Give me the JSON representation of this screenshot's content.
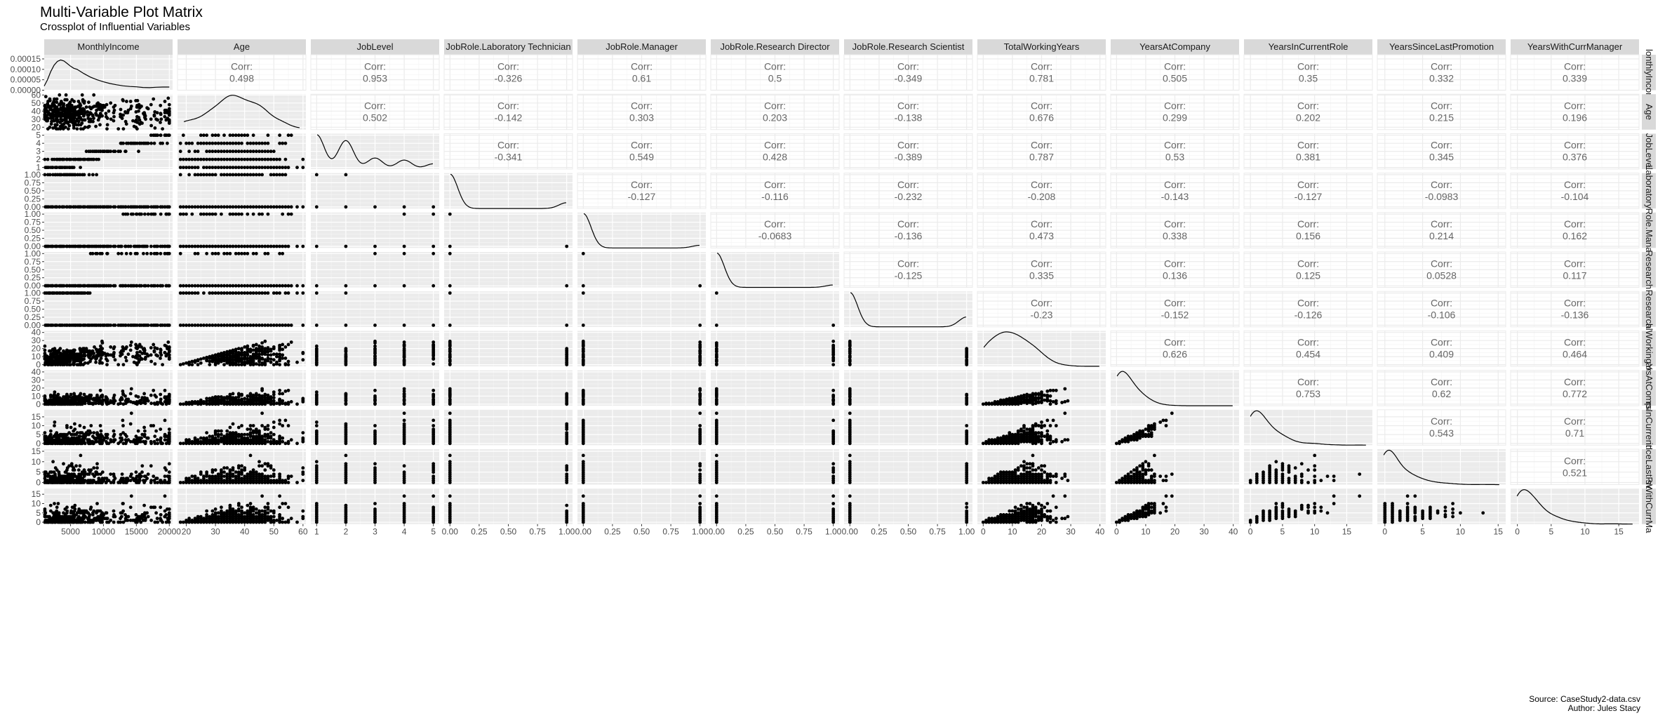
{
  "header": {
    "title": "Multi-Variable Plot Matrix",
    "subtitle": "Crossplot of Influential Variables"
  },
  "footer": {
    "source": "Source: CaseStudy2-data.csv",
    "author": "Author: Jules Stacy"
  },
  "chart_data": {
    "type": "scatter",
    "matrix": true,
    "variables": [
      "MonthlyIncome",
      "Age",
      "JobLevel",
      "JobRole.Laboratory Technician",
      "JobRole.Manager",
      "JobRole.Research Director",
      "JobRole.Research Scientist",
      "TotalWorkingYears",
      "YearsAtCompany",
      "YearsInCurrentRole",
      "YearsSinceLastPromotion",
      "YearsWithCurrManager"
    ],
    "row_strip_labels": [
      "lonthlyIncor",
      "Age",
      "JobLevel",
      "Laboratory T",
      "Role.Mana",
      "Research",
      "Research",
      "alWorkingYe",
      "arsAtCompa",
      "rsInCurrentF",
      "inceLastPro",
      "sWithCurrMa"
    ],
    "corr_word": "Corr:",
    "correlations": [
      [
        "",
        "0.498",
        "0.953",
        "-0.326",
        "0.61",
        "0.5",
        "-0.349",
        "0.781",
        "0.505",
        "0.35",
        "0.332",
        "0.339"
      ],
      [
        "",
        "",
        "0.502",
        "-0.142",
        "0.303",
        "0.203",
        "-0.138",
        "0.676",
        "0.299",
        "0.202",
        "0.215",
        "0.196"
      ],
      [
        "",
        "",
        "",
        "-0.341",
        "0.549",
        "0.428",
        "-0.389",
        "0.787",
        "0.53",
        "0.381",
        "0.345",
        "0.376"
      ],
      [
        "",
        "",
        "",
        "",
        "-0.127",
        "-0.116",
        "-0.232",
        "-0.208",
        "-0.143",
        "-0.127",
        "-0.0983",
        "-0.104"
      ],
      [
        "",
        "",
        "",
        "",
        "",
        "-0.0683",
        "-0.136",
        "0.473",
        "0.338",
        "0.156",
        "0.214",
        "0.162"
      ],
      [
        "",
        "",
        "",
        "",
        "",
        "",
        "-0.125",
        "0.335",
        "0.136",
        "0.125",
        "0.0528",
        "0.117"
      ],
      [
        "",
        "",
        "",
        "",
        "",
        "",
        "",
        "-0.23",
        "-0.152",
        "-0.126",
        "-0.106",
        "-0.136"
      ],
      [
        "",
        "",
        "",
        "",
        "",
        "",
        "",
        "",
        "0.626",
        "0.454",
        "0.409",
        "0.464"
      ],
      [
        "",
        "",
        "",
        "",
        "",
        "",
        "",
        "",
        "",
        "0.753",
        "0.62",
        "0.772"
      ],
      [
        "",
        "",
        "",
        "",
        "",
        "",
        "",
        "",
        "",
        "",
        "0.543",
        "0.71"
      ],
      [
        "",
        "",
        "",
        "",
        "",
        "",
        "",
        "",
        "",
        "",
        "",
        "0.521"
      ],
      [
        "",
        "",
        "",
        "",
        "",
        "",
        "",
        "",
        "",
        "",
        "",
        ""
      ]
    ],
    "ranges": [
      [
        1000,
        20500
      ],
      [
        17,
        61
      ],
      [
        0.8,
        5.2
      ],
      [
        -0.05,
        1.05
      ],
      [
        -0.05,
        1.05
      ],
      [
        -0.05,
        1.05
      ],
      [
        -0.05,
        1.05
      ],
      [
        -2,
        42
      ],
      [
        -2,
        42
      ],
      [
        -1,
        19
      ],
      [
        -1,
        16
      ],
      [
        -1,
        18
      ]
    ],
    "x_ticks": [
      [
        "5000",
        "10000",
        "15000",
        "20000"
      ],
      [
        "20",
        "30",
        "40",
        "50",
        "60"
      ],
      [
        "1",
        "2",
        "3",
        "4",
        "5"
      ],
      [
        "0.00",
        "0.25",
        "0.50",
        "0.75",
        "1.00"
      ],
      [
        "0.00",
        "0.25",
        "0.50",
        "0.75",
        "1.00"
      ],
      [
        "0.00",
        "0.25",
        "0.50",
        "0.75",
        "1.00"
      ],
      [
        "0.00",
        "0.25",
        "0.50",
        "0.75",
        "1.00"
      ],
      [
        "0",
        "10",
        "20",
        "30",
        "40"
      ],
      [
        "0",
        "10",
        "20",
        "30",
        "40"
      ],
      [
        "0",
        "5",
        "10",
        "15"
      ],
      [
        "0",
        "5",
        "10",
        "15"
      ],
      [
        "0",
        "5",
        "10",
        "15"
      ]
    ],
    "y_ticks": [
      [
        "0.00000",
        "0.00005",
        "0.00010",
        "0.00015"
      ],
      [
        "20",
        "30",
        "40",
        "50",
        "60"
      ],
      [
        "1",
        "2",
        "3",
        "4",
        "5"
      ],
      [
        "0.00",
        "0.25",
        "0.50",
        "0.75",
        "1.00"
      ],
      [
        "0.00",
        "0.25",
        "0.50",
        "0.75",
        "1.00"
      ],
      [
        "0.00",
        "0.25",
        "0.50",
        "0.75",
        "1.00"
      ],
      [
        "0.00",
        "0.25",
        "0.50",
        "0.75",
        "1.00"
      ],
      [
        "0",
        "10",
        "20",
        "30",
        "40"
      ],
      [
        "0",
        "10",
        "20",
        "30",
        "40"
      ],
      [
        "0",
        "5",
        "10",
        "15"
      ],
      [
        "0",
        "5",
        "10",
        "15"
      ],
      [
        "0",
        "5",
        "10",
        "15"
      ]
    ],
    "density_row0": {
      "x": [
        1000,
        1500,
        2000,
        2500,
        3000,
        3500,
        4000,
        4500,
        5000,
        5500,
        6000,
        6500,
        7000,
        8000,
        9000,
        10000,
        11000,
        12000,
        13000,
        14000,
        15000,
        16000,
        17000,
        18000,
        19000,
        20000
      ],
      "y": [
        2e-05,
        5e-05,
        9e-05,
        0.00012,
        0.000138,
        0.000145,
        0.00014,
        0.000128,
        0.000115,
        0.000105,
        0.0001,
        9e-05,
        8e-05,
        6.3e-05,
        5e-05,
        4e-05,
        3.2e-05,
        2.6e-05,
        2.1e-05,
        1.8e-05,
        1.6e-05,
        1.3e-05,
        1.2e-05,
        1.4e-05,
        1.5e-05,
        1.5e-05
      ],
      "ylim": [
        0,
        0.00017
      ]
    }
  }
}
